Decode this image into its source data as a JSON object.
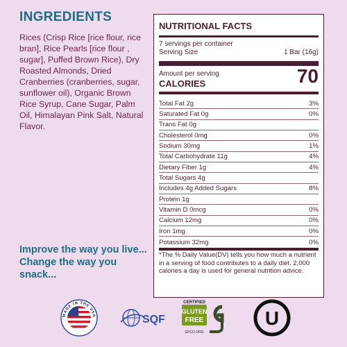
{
  "ingredients": {
    "title": "INGREDIENTS",
    "text": "Rices (Crisp Rice [rice flour, rice bran], Rice Pearls [rice flour , sugar], Puffed Brown Rice), Dry Roasted Almonds, Dried Cranberries (cranberries, sugar, sunflower oil), Organic Brown Rice Syrup, Cane Sugar, Palm Oil, Himalayan Pink Salt, Natural Flavor."
  },
  "tagline": "Improve the way you live... Change the way you snack...",
  "nutrition": {
    "title": "NUTRITIONAL FACTS",
    "servings_per_container": "7 servings per container",
    "serving_size_label": "Serving Size",
    "serving_size_value": "1 Bar (16g)",
    "amount_per_serving": "Amount per serving",
    "calories_label": "CALORIES",
    "calories_value": "70",
    "rows": [
      {
        "label": "Total Fat 2g",
        "dv": "3%"
      },
      {
        "label": "Saturated Fat 0g",
        "dv": "0%"
      },
      {
        "label": "Trans Fat 0g",
        "dv": ""
      },
      {
        "label": "Cholesterol 0mg",
        "dv": "0%"
      },
      {
        "label": "Sodium 30mg",
        "dv": "1%"
      },
      {
        "label": "Total Carbohydrate 11g",
        "dv": "4%"
      },
      {
        "label": "Dietary Fiber 1g",
        "dv": "4%"
      },
      {
        "label": "Total Sugars 4g",
        "dv": ""
      },
      {
        "label": "Includes 4g Added Sugars",
        "dv": "8%"
      },
      {
        "label": "Protein 1g",
        "dv": ""
      },
      {
        "label": "Vitamin D 0mcg",
        "dv": "0%"
      },
      {
        "label": "Calcium 12mg",
        "dv": "0%"
      },
      {
        "label": "Iron 1mg",
        "dv": "0%"
      },
      {
        "label": "Potassium 32mg",
        "dv": "0%"
      }
    ],
    "footnote": "*The % Daily Value(DV) tells you how much a nutrient in a serving of food contributes to a daily diet. 2,000 calories a day is used for general nutrition advice."
  },
  "badges": {
    "usa_badge_text": "MADE IN THE USA",
    "sqf_label": "SQF",
    "gf_certified": "CERTIFIED",
    "gf_line1": "GLUTEN",
    "gf_line2": "FREE",
    "gf_url": "GFCO.ORG",
    "kosher_letter": "U"
  },
  "colors": {
    "background": "#eedcee",
    "heading_teal": "#1c6e80",
    "ingredients_text": "#6a2448",
    "panel_dark": "#4a1d33"
  }
}
